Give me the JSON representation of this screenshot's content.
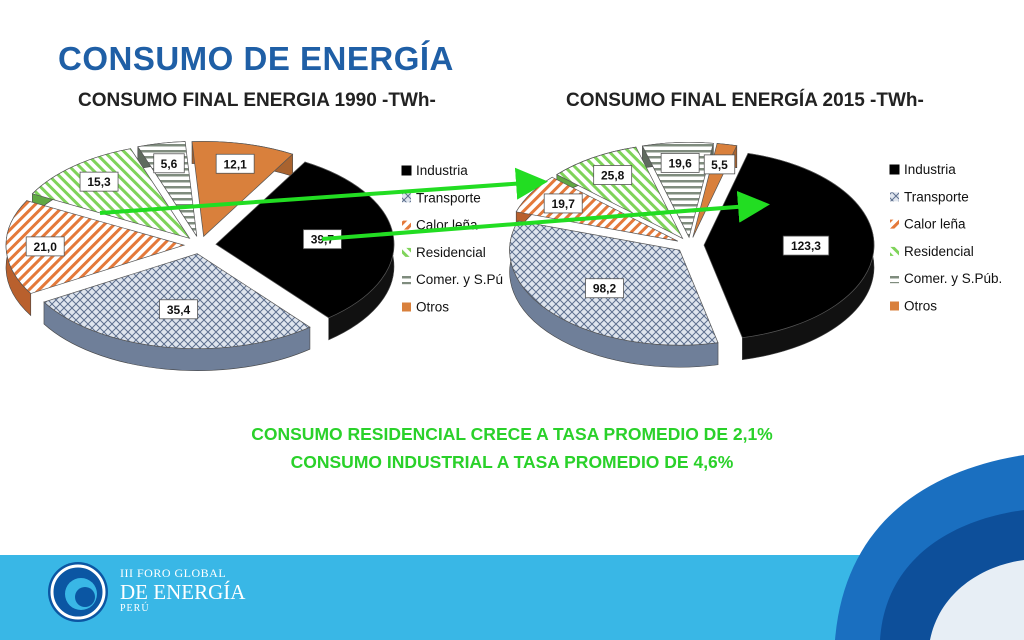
{
  "slide_title": "CONSUMO DE ENERGÍA",
  "chart_data": [
    {
      "type": "pie",
      "title": "CONSUMO FINAL ENERGIA 1990 -TWh-",
      "categories": [
        "Industria",
        "Transporte",
        "Calor leña",
        "Residencial",
        "Comer. y S.Púb.",
        "Otros"
      ],
      "legend_labels": [
        "Industria",
        "Transporte",
        "Calor leña",
        "Residencial",
        "Comer. y S.Pú",
        "Otros"
      ],
      "values": [
        39.7,
        35.4,
        21.0,
        15.3,
        5.6,
        12.1
      ],
      "data_labels": [
        "39,7",
        "35,4",
        "21,0",
        "15,3",
        "5,6",
        "12,1"
      ],
      "legend_position": "right",
      "colors": [
        "#000000",
        "#8fa3c4",
        "#e4793a",
        "#7fd35a",
        "#7f8c7e",
        "#d9803c"
      ]
    },
    {
      "type": "pie",
      "title": "CONSUMO FINAL ENERGÍA 2015 -TWh-",
      "categories": [
        "Industria",
        "Transporte",
        "Calor leña",
        "Residencial",
        "Comer. y S.Púb.",
        "Otros"
      ],
      "legend_labels": [
        "Industria",
        "Transporte",
        "Calor leña",
        "Residencial",
        "Comer. y S.Púb.",
        "Otros"
      ],
      "values": [
        123.3,
        98.2,
        19.7,
        25.8,
        19.6,
        5.5
      ],
      "data_labels": [
        "123,3",
        "98,2",
        "19,7",
        "25,8",
        "19,6",
        "5,5"
      ],
      "legend_position": "right",
      "colors": [
        "#000000",
        "#8fa3c4",
        "#e4793a",
        "#7fd35a",
        "#7f8c7e",
        "#d9803c"
      ]
    }
  ],
  "summary": {
    "line1": "CONSUMO RESIDENCIAL CRECE A TASA PROMEDIO DE 2,1%",
    "line2": "CONSUMO INDUSTRIAL A TASA PROMEDIO DE 4,6%"
  },
  "footer": {
    "line1": "III FORO GLOBAL",
    "line2": "DE ENERGÍA",
    "line3": "PERÚ"
  },
  "colors": {
    "title": "#1f5fa6",
    "summary": "#2ad12a",
    "footer_band": "#39b7e6",
    "arrow": "#22dd22"
  }
}
